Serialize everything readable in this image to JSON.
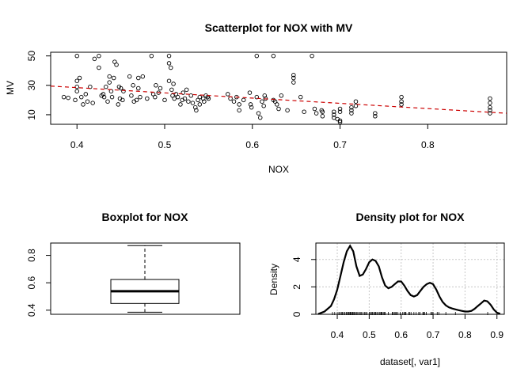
{
  "chart_data": [
    {
      "type": "scatter",
      "title": "Scatterplot for NOX with MV",
      "xlabel": "NOX",
      "ylabel": "MV",
      "xlim": [
        0.37,
        0.89
      ],
      "ylim": [
        3.5,
        52.5
      ],
      "x_ticks": [
        0.4,
        0.5,
        0.6,
        0.7,
        0.8
      ],
      "y_ticks": [
        10,
        30,
        50
      ],
      "grid": false,
      "marker": "open-circle",
      "point_color": "#000000",
      "trend_line": {
        "style": "dashed",
        "color": "#cc0000",
        "x": [
          0.37,
          0.89
        ],
        "y": [
          29.5,
          11.0
        ]
      },
      "points": [
        {
          "x": 0.385,
          "y": 22
        },
        {
          "x": 0.39,
          "y": 21.5
        },
        {
          "x": 0.398,
          "y": 20
        },
        {
          "x": 0.4,
          "y": 50
        },
        {
          "x": 0.4,
          "y": 29
        },
        {
          "x": 0.4,
          "y": 26
        },
        {
          "x": 0.4,
          "y": 33
        },
        {
          "x": 0.403,
          "y": 35
        },
        {
          "x": 0.405,
          "y": 22
        },
        {
          "x": 0.407,
          "y": 17
        },
        {
          "x": 0.41,
          "y": 24
        },
        {
          "x": 0.412,
          "y": 19
        },
        {
          "x": 0.415,
          "y": 29
        },
        {
          "x": 0.418,
          "y": 18
        },
        {
          "x": 0.42,
          "y": 48
        },
        {
          "x": 0.425,
          "y": 50
        },
        {
          "x": 0.425,
          "y": 42
        },
        {
          "x": 0.428,
          "y": 23
        },
        {
          "x": 0.43,
          "y": 24
        },
        {
          "x": 0.431,
          "y": 22
        },
        {
          "x": 0.433,
          "y": 29
        },
        {
          "x": 0.435,
          "y": 19
        },
        {
          "x": 0.437,
          "y": 36
        },
        {
          "x": 0.437,
          "y": 32
        },
        {
          "x": 0.439,
          "y": 26
        },
        {
          "x": 0.44,
          "y": 22
        },
        {
          "x": 0.442,
          "y": 35
        },
        {
          "x": 0.443,
          "y": 46
        },
        {
          "x": 0.445,
          "y": 44
        },
        {
          "x": 0.447,
          "y": 17
        },
        {
          "x": 0.448,
          "y": 29
        },
        {
          "x": 0.449,
          "y": 21
        },
        {
          "x": 0.45,
          "y": 28
        },
        {
          "x": 0.452,
          "y": 20
        },
        {
          "x": 0.453,
          "y": 26
        },
        {
          "x": 0.46,
          "y": 36
        },
        {
          "x": 0.462,
          "y": 23
        },
        {
          "x": 0.464,
          "y": 30
        },
        {
          "x": 0.465,
          "y": 19
        },
        {
          "x": 0.468,
          "y": 20
        },
        {
          "x": 0.47,
          "y": 28
        },
        {
          "x": 0.47,
          "y": 35
        },
        {
          "x": 0.472,
          "y": 22
        },
        {
          "x": 0.475,
          "y": 36
        },
        {
          "x": 0.48,
          "y": 21
        },
        {
          "x": 0.485,
          "y": 50
        },
        {
          "x": 0.487,
          "y": 24
        },
        {
          "x": 0.489,
          "y": 22
        },
        {
          "x": 0.49,
          "y": 30
        },
        {
          "x": 0.493,
          "y": 25
        },
        {
          "x": 0.495,
          "y": 28
        },
        {
          "x": 0.5,
          "y": 20
        },
        {
          "x": 0.505,
          "y": 50
        },
        {
          "x": 0.505,
          "y": 45
        },
        {
          "x": 0.505,
          "y": 33
        },
        {
          "x": 0.507,
          "y": 42
        },
        {
          "x": 0.508,
          "y": 27
        },
        {
          "x": 0.509,
          "y": 23
        },
        {
          "x": 0.51,
          "y": 31
        },
        {
          "x": 0.511,
          "y": 21
        },
        {
          "x": 0.513,
          "y": 24
        },
        {
          "x": 0.515,
          "y": 22
        },
        {
          "x": 0.518,
          "y": 17
        },
        {
          "x": 0.52,
          "y": 20
        },
        {
          "x": 0.521,
          "y": 25
        },
        {
          "x": 0.523,
          "y": 21
        },
        {
          "x": 0.525,
          "y": 27
        },
        {
          "x": 0.527,
          "y": 19
        },
        {
          "x": 0.53,
          "y": 23
        },
        {
          "x": 0.532,
          "y": 18
        },
        {
          "x": 0.535,
          "y": 15
        },
        {
          "x": 0.536,
          "y": 13
        },
        {
          "x": 0.538,
          "y": 20
        },
        {
          "x": 0.54,
          "y": 22
        },
        {
          "x": 0.54,
          "y": 17
        },
        {
          "x": 0.544,
          "y": 21
        },
        {
          "x": 0.545,
          "y": 19
        },
        {
          "x": 0.547,
          "y": 23
        },
        {
          "x": 0.549,
          "y": 22
        },
        {
          "x": 0.55,
          "y": 21
        },
        {
          "x": 0.572,
          "y": 24
        },
        {
          "x": 0.575,
          "y": 21
        },
        {
          "x": 0.579,
          "y": 19
        },
        {
          "x": 0.582,
          "y": 22
        },
        {
          "x": 0.585,
          "y": 17
        },
        {
          "x": 0.585,
          "y": 13
        },
        {
          "x": 0.59,
          "y": 20
        },
        {
          "x": 0.597,
          "y": 25
        },
        {
          "x": 0.598,
          "y": 17
        },
        {
          "x": 0.599,
          "y": 15
        },
        {
          "x": 0.605,
          "y": 50
        },
        {
          "x": 0.605,
          "y": 22
        },
        {
          "x": 0.607,
          "y": 11
        },
        {
          "x": 0.609,
          "y": 8
        },
        {
          "x": 0.611,
          "y": 19
        },
        {
          "x": 0.613,
          "y": 16
        },
        {
          "x": 0.614,
          "y": 23
        },
        {
          "x": 0.615,
          "y": 21
        },
        {
          "x": 0.624,
          "y": 20
        },
        {
          "x": 0.624,
          "y": 50
        },
        {
          "x": 0.626,
          "y": 19
        },
        {
          "x": 0.628,
          "y": 17
        },
        {
          "x": 0.63,
          "y": 14
        },
        {
          "x": 0.633,
          "y": 23
        },
        {
          "x": 0.64,
          "y": 13
        },
        {
          "x": 0.647,
          "y": 37
        },
        {
          "x": 0.647,
          "y": 35
        },
        {
          "x": 0.647,
          "y": 32
        },
        {
          "x": 0.655,
          "y": 22
        },
        {
          "x": 0.659,
          "y": 12
        },
        {
          "x": 0.668,
          "y": 50
        },
        {
          "x": 0.671,
          "y": 14
        },
        {
          "x": 0.673,
          "y": 11
        },
        {
          "x": 0.679,
          "y": 13
        },
        {
          "x": 0.68,
          "y": 12
        },
        {
          "x": 0.68,
          "y": 9
        },
        {
          "x": 0.693,
          "y": 12
        },
        {
          "x": 0.693,
          "y": 10
        },
        {
          "x": 0.693,
          "y": 8
        },
        {
          "x": 0.697,
          "y": 7
        },
        {
          "x": 0.7,
          "y": 12
        },
        {
          "x": 0.7,
          "y": 14
        },
        {
          "x": 0.7,
          "y": 6
        },
        {
          "x": 0.7,
          "y": 5
        },
        {
          "x": 0.713,
          "y": 15
        },
        {
          "x": 0.713,
          "y": 13
        },
        {
          "x": 0.713,
          "y": 11
        },
        {
          "x": 0.718,
          "y": 19
        },
        {
          "x": 0.718,
          "y": 16
        },
        {
          "x": 0.74,
          "y": 9
        },
        {
          "x": 0.74,
          "y": 11
        },
        {
          "x": 0.77,
          "y": 22
        },
        {
          "x": 0.77,
          "y": 19
        },
        {
          "x": 0.77,
          "y": 17
        },
        {
          "x": 0.871,
          "y": 21
        },
        {
          "x": 0.871,
          "y": 18
        },
        {
          "x": 0.871,
          "y": 15
        },
        {
          "x": 0.871,
          "y": 13
        },
        {
          "x": 0.871,
          "y": 11
        }
      ]
    },
    {
      "type": "box",
      "title": "Boxplot for  NOX",
      "ylim": [
        0.37,
        0.89
      ],
      "y_ticks": [
        "0.4",
        "0.6",
        "0.8"
      ],
      "stats": {
        "min": 0.385,
        "q1": 0.449,
        "median": 0.538,
        "q3": 0.624,
        "max": 0.871
      },
      "grid": false
    },
    {
      "type": "area",
      "title": "Density plot for NOX",
      "xlabel": "dataset[, var1]",
      "ylabel": "Density",
      "xlim": [
        0.333,
        0.923
      ],
      "ylim": [
        0,
        5.2
      ],
      "x_ticks": [
        "0.4",
        "0.5",
        "0.6",
        "0.7",
        "0.8",
        "0.9"
      ],
      "y_ticks": [
        "0",
        "2",
        "4"
      ],
      "grid": true,
      "rug": true,
      "curve": {
        "x": [
          0.34,
          0.36,
          0.38,
          0.39,
          0.4,
          0.41,
          0.42,
          0.43,
          0.44,
          0.45,
          0.46,
          0.47,
          0.48,
          0.49,
          0.5,
          0.51,
          0.52,
          0.53,
          0.54,
          0.55,
          0.56,
          0.57,
          0.58,
          0.59,
          0.6,
          0.61,
          0.62,
          0.63,
          0.64,
          0.65,
          0.66,
          0.67,
          0.68,
          0.69,
          0.7,
          0.71,
          0.72,
          0.73,
          0.74,
          0.75,
          0.76,
          0.77,
          0.78,
          0.79,
          0.8,
          0.81,
          0.82,
          0.83,
          0.84,
          0.85,
          0.86,
          0.87,
          0.88,
          0.89,
          0.9,
          0.91
        ],
        "y": [
          0.02,
          0.2,
          0.6,
          1.1,
          1.8,
          2.8,
          3.8,
          4.6,
          5.0,
          4.6,
          3.5,
          2.8,
          2.9,
          3.3,
          3.8,
          4.0,
          3.9,
          3.5,
          2.7,
          2.1,
          1.9,
          2.0,
          2.2,
          2.4,
          2.4,
          2.1,
          1.7,
          1.4,
          1.3,
          1.4,
          1.7,
          2.0,
          2.2,
          2.3,
          2.2,
          1.8,
          1.3,
          0.9,
          0.65,
          0.5,
          0.42,
          0.36,
          0.3,
          0.25,
          0.2,
          0.2,
          0.25,
          0.4,
          0.6,
          0.8,
          1.0,
          0.95,
          0.7,
          0.35,
          0.12,
          0.04
        ]
      },
      "rug_values": [
        0.385,
        0.392,
        0.4,
        0.405,
        0.409,
        0.413,
        0.416,
        0.42,
        0.424,
        0.428,
        0.431,
        0.435,
        0.437,
        0.44,
        0.442,
        0.445,
        0.448,
        0.45,
        0.453,
        0.457,
        0.46,
        0.464,
        0.468,
        0.472,
        0.475,
        0.48,
        0.485,
        0.489,
        0.493,
        0.5,
        0.504,
        0.507,
        0.51,
        0.514,
        0.518,
        0.52,
        0.524,
        0.528,
        0.532,
        0.536,
        0.538,
        0.54,
        0.544,
        0.547,
        0.55,
        0.56,
        0.572,
        0.575,
        0.579,
        0.583,
        0.585,
        0.59,
        0.597,
        0.605,
        0.609,
        0.613,
        0.615,
        0.624,
        0.626,
        0.631,
        0.64,
        0.647,
        0.655,
        0.659,
        0.668,
        0.671,
        0.673,
        0.679,
        0.693,
        0.697,
        0.7,
        0.713,
        0.718,
        0.74,
        0.77,
        0.871
      ]
    }
  ]
}
